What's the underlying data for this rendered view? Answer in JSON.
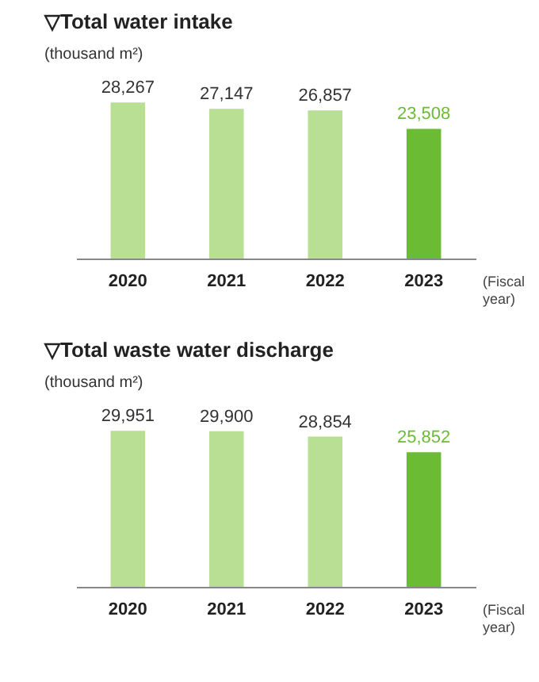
{
  "chart_data": [
    {
      "type": "bar",
      "title": "▽Total water intake",
      "ylabel": "(thousand m²)",
      "xlabel": "(Fiscal year)",
      "categories": [
        "2020",
        "2021",
        "2022",
        "2023"
      ],
      "values": [
        28267,
        27147,
        26857,
        23508
      ],
      "colors": [
        "#b8df94",
        "#b8df94",
        "#b8df94",
        "#6cbb35"
      ],
      "value_labels": [
        "28,267",
        "27,147",
        "26,857",
        "23,508"
      ]
    },
    {
      "type": "bar",
      "title": "▽Total waste water discharge",
      "ylabel": "(thousand m²)",
      "xlabel": "(Fiscal year)",
      "categories": [
        "2020",
        "2021",
        "2022",
        "2023"
      ],
      "values": [
        29951,
        29900,
        28854,
        25852
      ],
      "colors": [
        "#b8df94",
        "#b8df94",
        "#b8df94",
        "#6cbb35"
      ],
      "value_labels": [
        "29,951",
        "29,900",
        "28,854",
        "25,852"
      ]
    }
  ]
}
